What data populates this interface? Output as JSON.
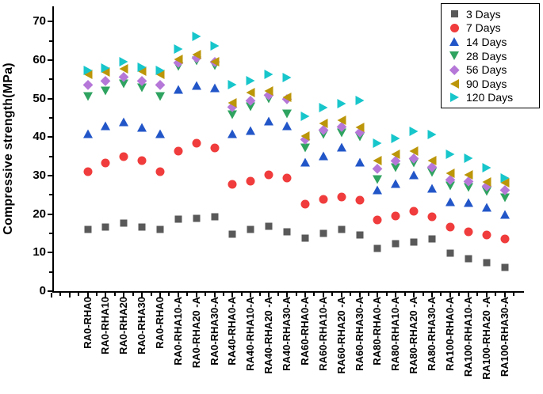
{
  "chart_data": {
    "type": "scatter",
    "title": "",
    "xlabel": "",
    "ylabel": "Compressive strength(MPa)",
    "ylim": [
      0,
      74
    ],
    "yticks": [
      0,
      10,
      20,
      30,
      40,
      50,
      60,
      70
    ],
    "grid": false,
    "legend_position": "top-right",
    "categories": [
      "RA0-RHA0",
      "RA0-RHA10",
      "RA0-RHA20",
      "RA0-RHA30",
      "RA0-RHA0",
      "RA0-RHA10-A",
      "RA0-RHA20 -A",
      "RA0-RHA30-A",
      "RA40-RHA0-A",
      "RA40-RHA10-A",
      "RA40-RHA20 -A",
      "RA40-RHA30-A",
      "RA60-RHA0-A",
      "RA60-RHA10-A",
      "RA60-RHA20 -A",
      "RA60-RHA30-A",
      "RA80-RHA0-A",
      "RA80-RHA10-A",
      "RA80-RHA20 -A",
      "RA80-RHA30-A",
      "RA100-RHA0-A",
      "RA100-RHA10-A",
      "RA100-RHA20 -A",
      "RA100-RHA30-A"
    ],
    "series": [
      {
        "name": "3 Days",
        "marker": "square",
        "color": "#595959",
        "values": [
          16.0,
          16.6,
          17.6,
          16.7,
          16.0,
          18.7,
          19.0,
          19.3,
          14.7,
          16.1,
          16.8,
          15.4,
          13.8,
          15.0,
          16.0,
          14.6,
          11.0,
          12.4,
          12.8,
          13.6,
          9.9,
          8.4,
          7.4,
          6.2
        ]
      },
      {
        "name": "7 Days",
        "marker": "circle",
        "color": "#f03c3c",
        "values": [
          31.0,
          33.2,
          35.0,
          33.9,
          31.0,
          36.4,
          38.5,
          37.2,
          27.7,
          28.6,
          30.3,
          29.3,
          22.6,
          23.8,
          24.4,
          23.7,
          18.5,
          19.5,
          20.7,
          19.3,
          16.6,
          15.4,
          14.6,
          13.6
        ]
      },
      {
        "name": "14 Days",
        "marker": "triangle-up",
        "color": "#2256c8",
        "values": [
          41.0,
          42.9,
          43.9,
          42.5,
          41.0,
          52.4,
          53.5,
          52.9,
          41.0,
          41.8,
          44.1,
          42.9,
          33.5,
          35.2,
          37.4,
          33.5,
          26.3,
          28.0,
          30.3,
          26.7,
          23.2,
          23.1,
          21.8,
          20.0
        ]
      },
      {
        "name": "28 Days",
        "marker": "triangle-down",
        "color": "#2fa360",
        "values": [
          50.6,
          52.0,
          53.9,
          52.8,
          50.6,
          58.3,
          59.8,
          58.5,
          45.9,
          47.8,
          49.9,
          46.0,
          37.2,
          40.8,
          41.2,
          40.0,
          29.0,
          32.0,
          33.4,
          30.8,
          27.3,
          26.9,
          25.8,
          24.2
        ]
      },
      {
        "name": "56 Days",
        "marker": "diamond",
        "color": "#b678d8",
        "values": [
          53.6,
          54.7,
          55.7,
          54.7,
          53.6,
          59.5,
          60.7,
          59.6,
          47.8,
          49.5,
          51.0,
          50.0,
          39.4,
          42.0,
          42.7,
          41.4,
          31.9,
          33.9,
          34.5,
          32.3,
          29.0,
          28.6,
          27.4,
          26.3
        ]
      },
      {
        "name": "90 Days",
        "marker": "triangle-left",
        "color": "#bc9609",
        "values": [
          56.3,
          56.9,
          57.7,
          57.2,
          56.3,
          60.2,
          61.5,
          59.6,
          48.9,
          51.5,
          52.1,
          50.4,
          40.3,
          43.5,
          44.3,
          42.6,
          33.9,
          35.6,
          36.4,
          33.9,
          30.7,
          30.3,
          28.4,
          28.1
        ]
      },
      {
        "name": "120 Days",
        "marker": "triangle-right",
        "color": "#17c6cb",
        "values": [
          57.4,
          58.0,
          59.6,
          58.1,
          57.4,
          63.0,
          66.2,
          63.8,
          53.7,
          54.7,
          56.3,
          55.4,
          45.4,
          47.6,
          48.7,
          49.5,
          38.5,
          39.6,
          41.6,
          40.6,
          35.5,
          34.6,
          32.0,
          29.3
        ]
      }
    ]
  }
}
